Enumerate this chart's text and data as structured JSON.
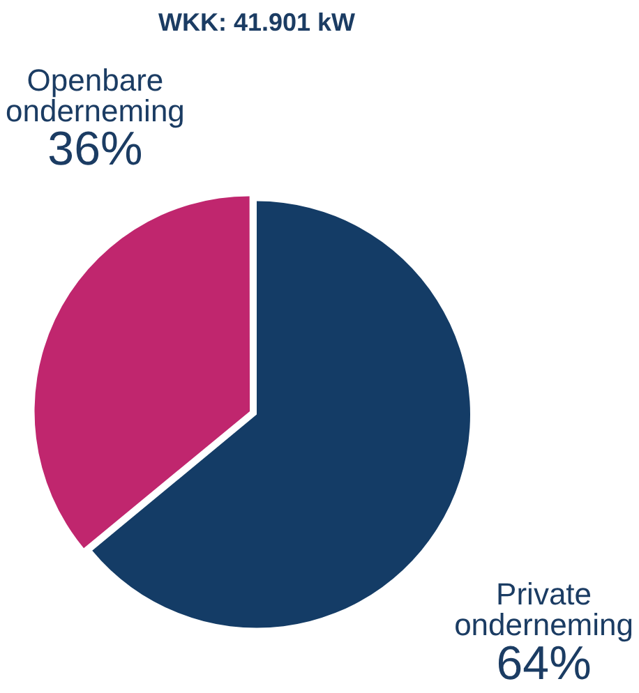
{
  "chart_data": {
    "type": "pie",
    "title": "WKK: 41.901 kW",
    "categories": [
      "Private onderneming",
      "Openbare onderneming"
    ],
    "values": [
      64,
      36
    ],
    "colors": [
      "#143c66",
      "#c0266e"
    ],
    "value_labels": [
      "64%",
      "36%"
    ],
    "legend": false
  }
}
